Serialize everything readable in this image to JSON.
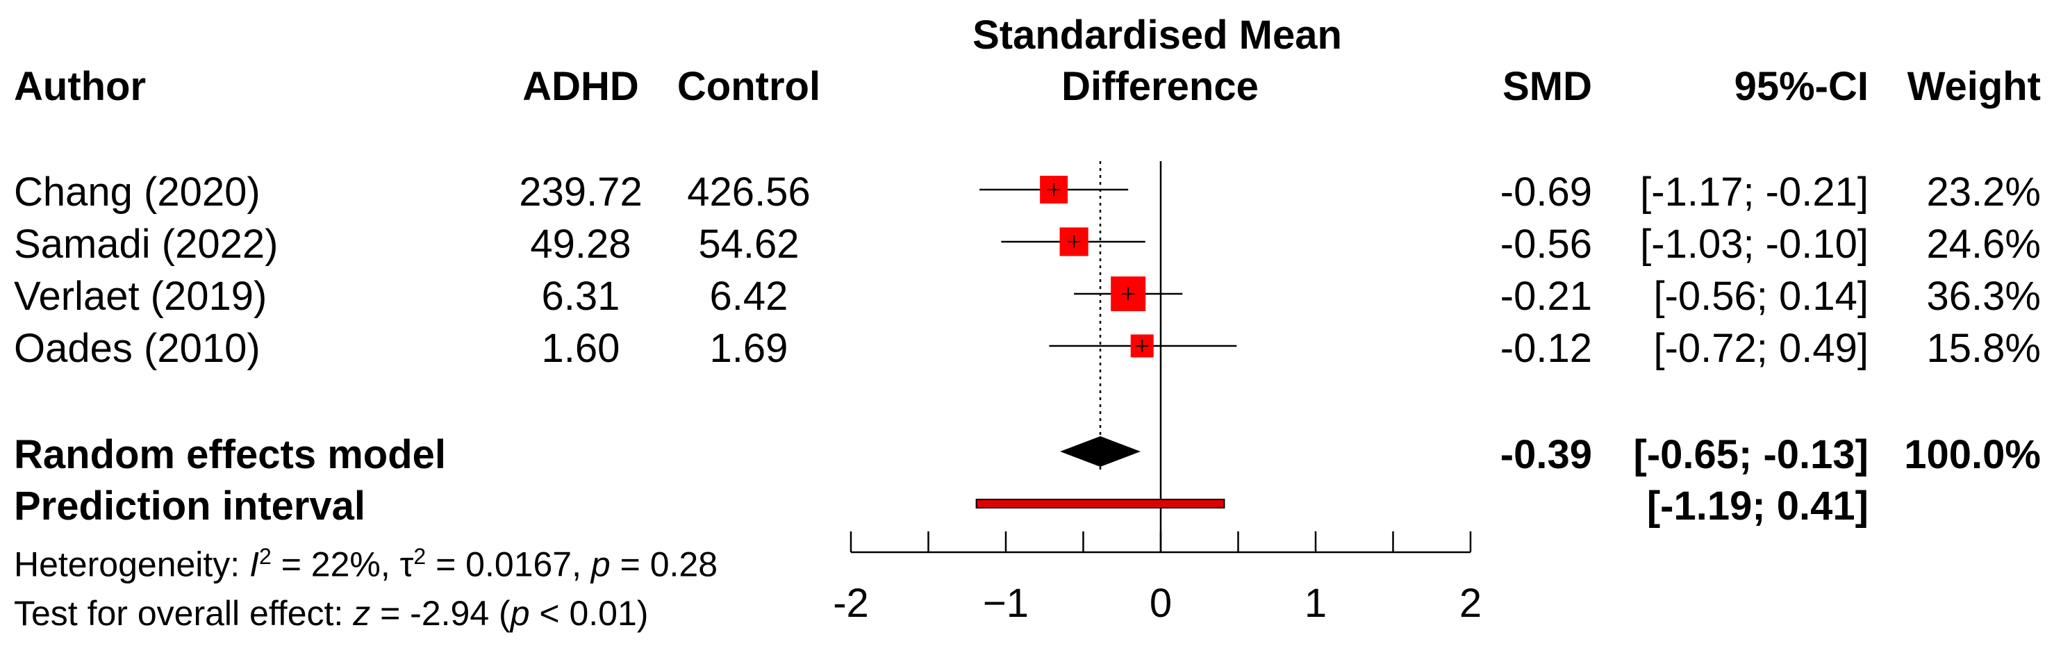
{
  "chart_data": {
    "type": "forest",
    "title": "Standardised Mean Difference",
    "title_lines": [
      "Standardised Mean",
      "Difference"
    ],
    "columns": {
      "author": "Author",
      "adhd": "ADHD",
      "control": "Control",
      "smd": "SMD",
      "ci": "95%-CI",
      "weight": "Weight"
    },
    "studies": [
      {
        "author": "Chang (2020)",
        "adhd": "239.72",
        "control": "426.56",
        "smd": -0.69,
        "lo": -1.17,
        "hi": -0.21,
        "weight_pct": 23.2,
        "smd_text": "-0.69",
        "ci_text": "[-1.17; -0.21]",
        "weight_text": "23.2%"
      },
      {
        "author": "Samadi (2022)",
        "adhd": "49.28",
        "control": "54.62",
        "smd": -0.56,
        "lo": -1.03,
        "hi": -0.1,
        "weight_pct": 24.6,
        "smd_text": "-0.56",
        "ci_text": "[-1.03; -0.10]",
        "weight_text": "24.6%"
      },
      {
        "author": "Verlaet (2019)",
        "adhd": "6.31",
        "control": "6.42",
        "smd": -0.21,
        "lo": -0.56,
        "hi": 0.14,
        "weight_pct": 36.3,
        "smd_text": "-0.21",
        "ci_text": "[-0.56;  0.14]",
        "weight_text": "36.3%"
      },
      {
        "author": "Oades (2010)",
        "adhd": "1.60",
        "control": "1.69",
        "smd": -0.12,
        "lo": -0.72,
        "hi": 0.49,
        "weight_pct": 15.8,
        "smd_text": "-0.12",
        "ci_text": "[-0.72;  0.49]",
        "weight_text": "15.8%"
      }
    ],
    "pooled": {
      "label": "Random effects model",
      "smd": -0.39,
      "lo": -0.65,
      "hi": -0.13,
      "smd_text": "-0.39",
      "ci_text": "[-0.65; -0.13]",
      "weight_text": "100.0%"
    },
    "prediction": {
      "label": "Prediction interval",
      "lo": -1.19,
      "hi": 0.41,
      "ci_text": "[-1.19;  0.41]"
    },
    "xlim": [
      -2,
      2
    ],
    "xticks": [
      -2,
      -1,
      0,
      1,
      2
    ],
    "tick_labels": [
      "-2",
      "−1",
      "0",
      "1",
      "2"
    ],
    "reference_line": 0,
    "heterogeneity": {
      "prefix": "Heterogeneity: ",
      "i2_sym": "I",
      "i2_text": " = 22%, ",
      "tau_sym": "τ",
      "tau_text": " = 0.0167, ",
      "p_sym": "p",
      "p_text": " = 0.28",
      "sup": "2"
    },
    "overall_test": {
      "prefix": "Test for overall effect: ",
      "z_sym": "z",
      "z_text": " = -2.94 (",
      "p_sym": "p",
      "p_text": " < 0.01)"
    },
    "colors": {
      "square": "#ff0000",
      "prediction": "#e00000",
      "diamond": "#000000",
      "line": "#000000"
    }
  }
}
